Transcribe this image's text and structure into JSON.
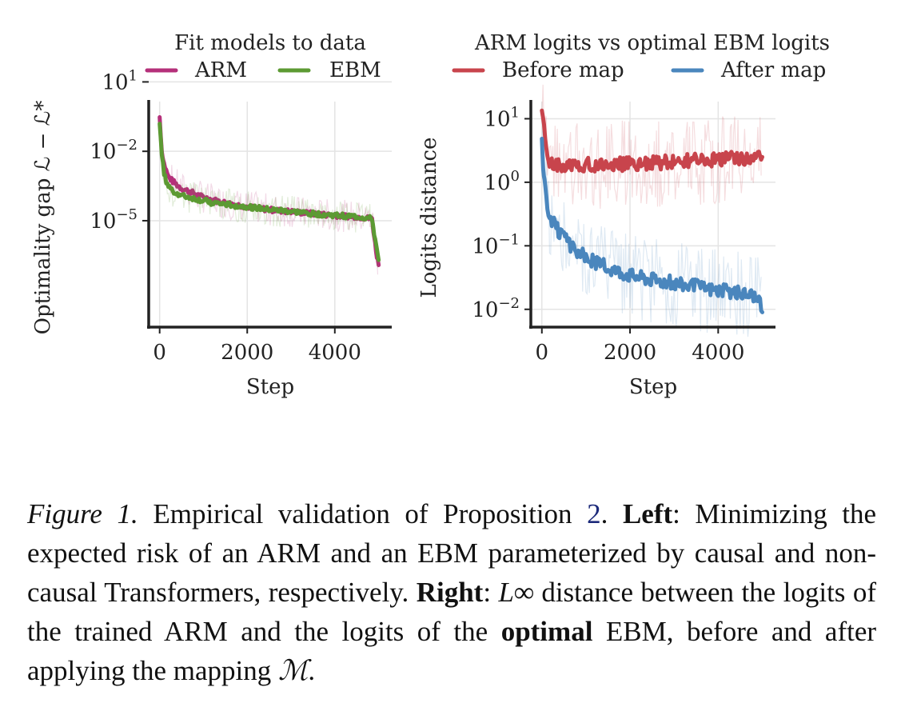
{
  "colors": {
    "arm": "#b5307a",
    "ebm": "#5c9a33",
    "before": "#c8444c",
    "after": "#4a86bd",
    "axis": "#222222",
    "grid": "#e4e4e4"
  },
  "chart_data": [
    {
      "type": "line",
      "title": "Fit models to data",
      "xlabel": "Step",
      "ylabel": "Optimality gap ℒ − ℒ*",
      "yscale": "log",
      "xlim": [
        -250,
        5300
      ],
      "ylim_log10": [
        -9.6,
        0.15
      ],
      "xticks": [
        0,
        2000,
        4000
      ],
      "xtick_labels": [
        "0",
        "2000",
        "4000"
      ],
      "yticks_log10": [
        1,
        -2,
        -5
      ],
      "ytick_labels": [
        {
          "base": "10",
          "exp": "1"
        },
        {
          "base": "10",
          "exp": "−2"
        },
        {
          "base": "10",
          "exp": "−5"
        }
      ],
      "legend": [
        "ARM",
        "EBM"
      ],
      "legend_position": "top",
      "series": [
        {
          "name": "ARM",
          "x": [
            0,
            50,
            100,
            150,
            200,
            300,
            400,
            500,
            700,
            900,
            1200,
            1500,
            2000,
            2500,
            3000,
            3500,
            4000,
            4500,
            4850,
            4880,
            4920,
            4960,
            5000
          ],
          "y": [
            0.3,
            0.01,
            0.003,
            0.0015,
            0.0008,
            0.0005,
            0.00035,
            0.00025,
            0.00018,
            0.00012,
            8e-05,
            6e-05,
            4e-05,
            3e-05,
            2.5e-05,
            2e-05,
            1.7e-05,
            1.5e-05,
            1.2e-05,
            4e-06,
            1e-06,
            3e-07,
            1.2e-07
          ]
        },
        {
          "name": "EBM",
          "x": [
            0,
            50,
            100,
            150,
            200,
            300,
            400,
            500,
            700,
            900,
            1200,
            1500,
            2000,
            2500,
            3000,
            3500,
            4000,
            4500,
            4850,
            4880,
            4920,
            4960,
            5000
          ],
          "y": [
            0.2,
            0.006,
            0.0012,
            0.0005,
            0.0003,
            0.0002,
            0.00015,
            0.00012,
            0.0001,
            8e-05,
            6e-05,
            5e-05,
            4e-05,
            3e-05,
            2.5e-05,
            2e-05,
            1.7e-05,
            1.5e-05,
            1.2e-05,
            5e-06,
            1.5e-06,
            5e-07,
            2e-07
          ]
        }
      ]
    },
    {
      "type": "line",
      "title": "ARM logits vs optimal EBM logits",
      "xlabel": "Step",
      "ylabel": "Logits distance",
      "yscale": "log",
      "xlim": [
        -250,
        5300
      ],
      "ylim_log10": [
        -2.28,
        1.27
      ],
      "xticks": [
        0,
        2000,
        4000
      ],
      "xtick_labels": [
        "0",
        "2000",
        "4000"
      ],
      "yticks_log10": [
        1,
        0,
        -1,
        -2
      ],
      "ytick_labels": [
        {
          "base": "10",
          "exp": "1"
        },
        {
          "base": "10",
          "exp": "0"
        },
        {
          "base": "10",
          "exp": "−1"
        },
        {
          "base": "10",
          "exp": "−2"
        }
      ],
      "legend": [
        "Before map",
        "After map"
      ],
      "legend_position": "top",
      "series": [
        {
          "name": "Before map",
          "x": [
            0,
            50,
            100,
            150,
            200,
            300,
            500,
            800,
            1000,
            1500,
            2000,
            2500,
            3000,
            3500,
            4000,
            4500,
            5000
          ],
          "y": [
            12,
            7,
            3.5,
            2.2,
            1.9,
            1.85,
            1.8,
            1.85,
            1.9,
            1.9,
            1.95,
            2.0,
            2.1,
            2.2,
            2.3,
            2.4,
            2.5
          ]
        },
        {
          "name": "After map",
          "x": [
            0,
            30,
            60,
            100,
            150,
            200,
            300,
            400,
            500,
            700,
            1000,
            1500,
            2000,
            2500,
            3000,
            3500,
            4000,
            4500,
            4800,
            4950,
            5000
          ],
          "y": [
            5.5,
            2.0,
            0.9,
            0.5,
            0.35,
            0.28,
            0.2,
            0.16,
            0.13,
            0.09,
            0.065,
            0.045,
            0.035,
            0.03,
            0.026,
            0.023,
            0.02,
            0.018,
            0.017,
            0.012,
            0.009
          ]
        }
      ]
    }
  ],
  "caption": {
    "fig_label": "Figure 1.",
    "text1": "Empirical validation of Proposition",
    "ref": "2",
    "text2": ".",
    "left_label": "Left",
    "left_text": ": Minimizing the expected risk of an ARM and an EBM parameterized by causal and non-causal Transformers, respectively.",
    "right_label": "Right",
    "right_pre": ":",
    "right_math": "L∞",
    "right_text": "distance between the logits of the trained ARM and the logits of the",
    "optimal_label": "optimal",
    "end_text": "EBM, before and after applying the mapping",
    "mapping_math": "ℳ",
    "end_period": "."
  }
}
